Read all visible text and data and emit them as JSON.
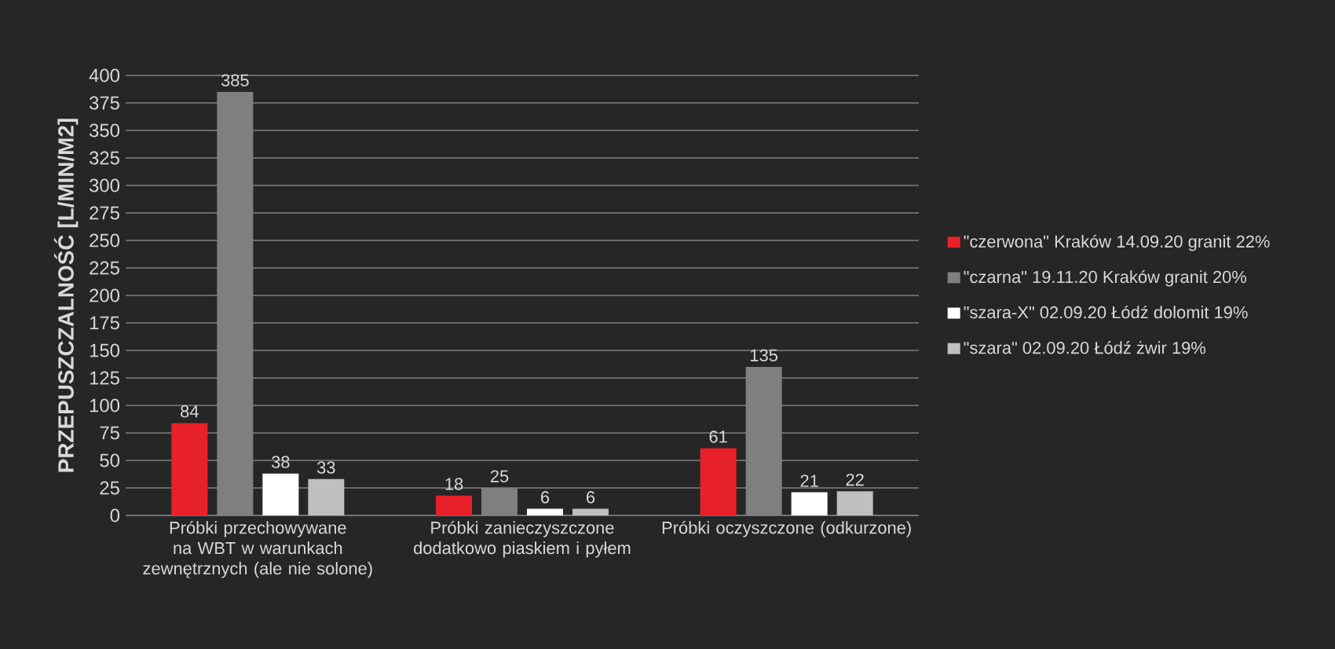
{
  "chart_data": {
    "type": "bar",
    "ylabel": "PRZEPUSZCZALNOŚĆ [L/MIN/M2]",
    "categories": [
      "Próbki przechowywane na WBT w warunkach zewnętrznych (ale nie solone)",
      "Próbki zanieczyszczone dodatkowo piaskiem i pyłem",
      "Próbki oczyszczone (odkurzone)"
    ],
    "series": [
      {
        "name": "\"czerwona\" Kraków 14.09.20 granit 22%",
        "color": "#e8202a",
        "values": [
          84,
          18,
          61
        ]
      },
      {
        "name": "\"czarna\" 19.11.20 Kraków granit 20%",
        "color": "#7f7f7f",
        "values": [
          385,
          25,
          135
        ]
      },
      {
        "name": "\"szara-X\" 02.09.20 Łódź dolomit 19%",
        "color": "#ffffff",
        "values": [
          38,
          6,
          21
        ]
      },
      {
        "name": "\"szara\" 02.09.20 Łódź żwir 19%",
        "color": "#bfbfbf",
        "values": [
          33,
          6,
          22
        ]
      }
    ],
    "ylim": [
      0,
      400
    ],
    "yticks": [
      0,
      25,
      50,
      75,
      100,
      125,
      150,
      175,
      200,
      225,
      250,
      275,
      300,
      325,
      350,
      375,
      400
    ],
    "grid": "y",
    "legend": "right",
    "data_labels": true
  }
}
